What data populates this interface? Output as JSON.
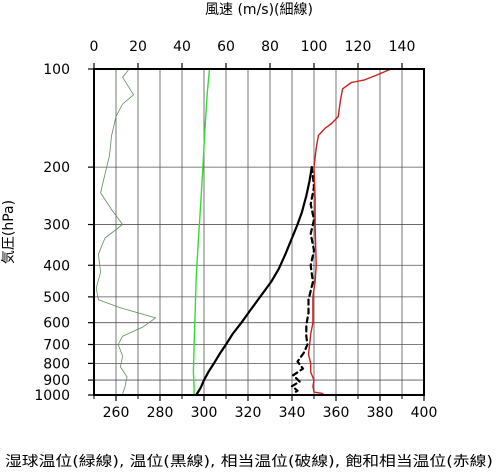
{
  "chart_data": {
    "type": "line",
    "top_axis": {
      "label": "風速 (m/s)(細線)",
      "ticks": [
        0,
        20,
        40,
        60,
        80,
        100,
        120,
        140
      ],
      "range": [
        0,
        150
      ]
    },
    "bottom_axis": {
      "label": "湿球温位(緑線), 温位(黒線), 相当温位(破線), 飽和相当温位(赤線)",
      "ticks": [
        260,
        280,
        300,
        320,
        340,
        360,
        380,
        400
      ],
      "range": [
        250,
        400
      ],
      "minor_ticks": [
        250,
        270,
        290,
        310,
        330,
        350,
        370,
        390
      ]
    },
    "y_axis": {
      "label": "気圧(hPa)",
      "scale": "log",
      "reversed": true,
      "ticks": [
        100,
        200,
        300,
        400,
        500,
        600,
        700,
        800,
        900,
        1000
      ],
      "range": [
        1000,
        100
      ]
    },
    "grid": true,
    "series": [
      {
        "key": "wind_speed",
        "axis": "top",
        "color": "#5c8f5c",
        "style": "thin",
        "points": [
          [
            16,
            100
          ],
          [
            13,
            106
          ],
          [
            18,
            120
          ],
          [
            13,
            128
          ],
          [
            10,
            140
          ],
          [
            8,
            160
          ],
          [
            7,
            185
          ],
          [
            5,
            210
          ],
          [
            3,
            240
          ],
          [
            8,
            270
          ],
          [
            13,
            300
          ],
          [
            5,
            330
          ],
          [
            2,
            370
          ],
          [
            3,
            420
          ],
          [
            1,
            470
          ],
          [
            2,
            510
          ],
          [
            12,
            540
          ],
          [
            28,
            580
          ],
          [
            22,
            620
          ],
          [
            13,
            660
          ],
          [
            11,
            700
          ],
          [
            13,
            760
          ],
          [
            12,
            820
          ],
          [
            15,
            880
          ],
          [
            14,
            950
          ],
          [
            13,
            990
          ]
        ]
      },
      {
        "key": "wet_bulb_potential_temperature",
        "axis": "bottom",
        "color": "#33dd33",
        "style": "solid",
        "points": [
          [
            302.5,
            100
          ],
          [
            301.5,
            118
          ],
          [
            300.5,
            150
          ],
          [
            299.5,
            200
          ],
          [
            298.5,
            260
          ],
          [
            297.5,
            330
          ],
          [
            296.5,
            430
          ],
          [
            296.0,
            550
          ],
          [
            295.5,
            700
          ],
          [
            295.2,
            850
          ],
          [
            295.5,
            950
          ],
          [
            295.5,
            1000
          ]
        ]
      },
      {
        "key": "potential_temperature",
        "axis": "bottom",
        "color": "#000000",
        "style": "solid",
        "points": [
          [
            349,
            200
          ],
          [
            348,
            220
          ],
          [
            346.5,
            245
          ],
          [
            344.5,
            275
          ],
          [
            342.5,
            300
          ],
          [
            340,
            330
          ],
          [
            337,
            370
          ],
          [
            334,
            410
          ],
          [
            330.5,
            450
          ],
          [
            325.5,
            500
          ],
          [
            321,
            550
          ],
          [
            317,
            600
          ],
          [
            313,
            650
          ],
          [
            310,
            700
          ],
          [
            307,
            750
          ],
          [
            304.5,
            800
          ],
          [
            302,
            850
          ],
          [
            300,
            900
          ],
          [
            298.5,
            950
          ],
          [
            296.5,
            1000
          ]
        ]
      },
      {
        "key": "equivalent_potential_temperature",
        "axis": "bottom",
        "color": "#000000",
        "style": "dashed",
        "points": [
          [
            349,
            200
          ],
          [
            350,
            230
          ],
          [
            348.5,
            260
          ],
          [
            350,
            290
          ],
          [
            348.5,
            320
          ],
          [
            350,
            360
          ],
          [
            348.5,
            400
          ],
          [
            349.5,
            450
          ],
          [
            347.5,
            510
          ],
          [
            347.5,
            560
          ],
          [
            346.5,
            610
          ],
          [
            346.5,
            660
          ],
          [
            347,
            700
          ],
          [
            345.5,
            740
          ],
          [
            342.5,
            790
          ],
          [
            345,
            830
          ],
          [
            340.5,
            870
          ],
          [
            343.5,
            910
          ],
          [
            340,
            940
          ],
          [
            342.5,
            970
          ],
          [
            340.5,
            990
          ]
        ]
      },
      {
        "key": "saturated_equivalent_potential_temperature",
        "axis": "bottom",
        "color": "#cc2020",
        "style": "solid",
        "points": [
          [
            385,
            100
          ],
          [
            379,
            104
          ],
          [
            373,
            108
          ],
          [
            367,
            110
          ],
          [
            363,
            115
          ],
          [
            362,
            125
          ],
          [
            361,
            140
          ],
          [
            358,
            147
          ],
          [
            355,
            152
          ],
          [
            352,
            160
          ],
          [
            351,
            175
          ],
          [
            350,
            200
          ],
          [
            350.5,
            250
          ],
          [
            350.5,
            300
          ],
          [
            351,
            400
          ],
          [
            350.5,
            450
          ],
          [
            349.5,
            500
          ],
          [
            349.5,
            550
          ],
          [
            349.5,
            600
          ],
          [
            348.5,
            650
          ],
          [
            348,
            700
          ],
          [
            347.5,
            750
          ],
          [
            348.5,
            800
          ],
          [
            348.5,
            850
          ],
          [
            350,
            900
          ],
          [
            349.5,
            940
          ],
          [
            350,
            980
          ],
          [
            354,
            990
          ]
        ]
      }
    ]
  }
}
